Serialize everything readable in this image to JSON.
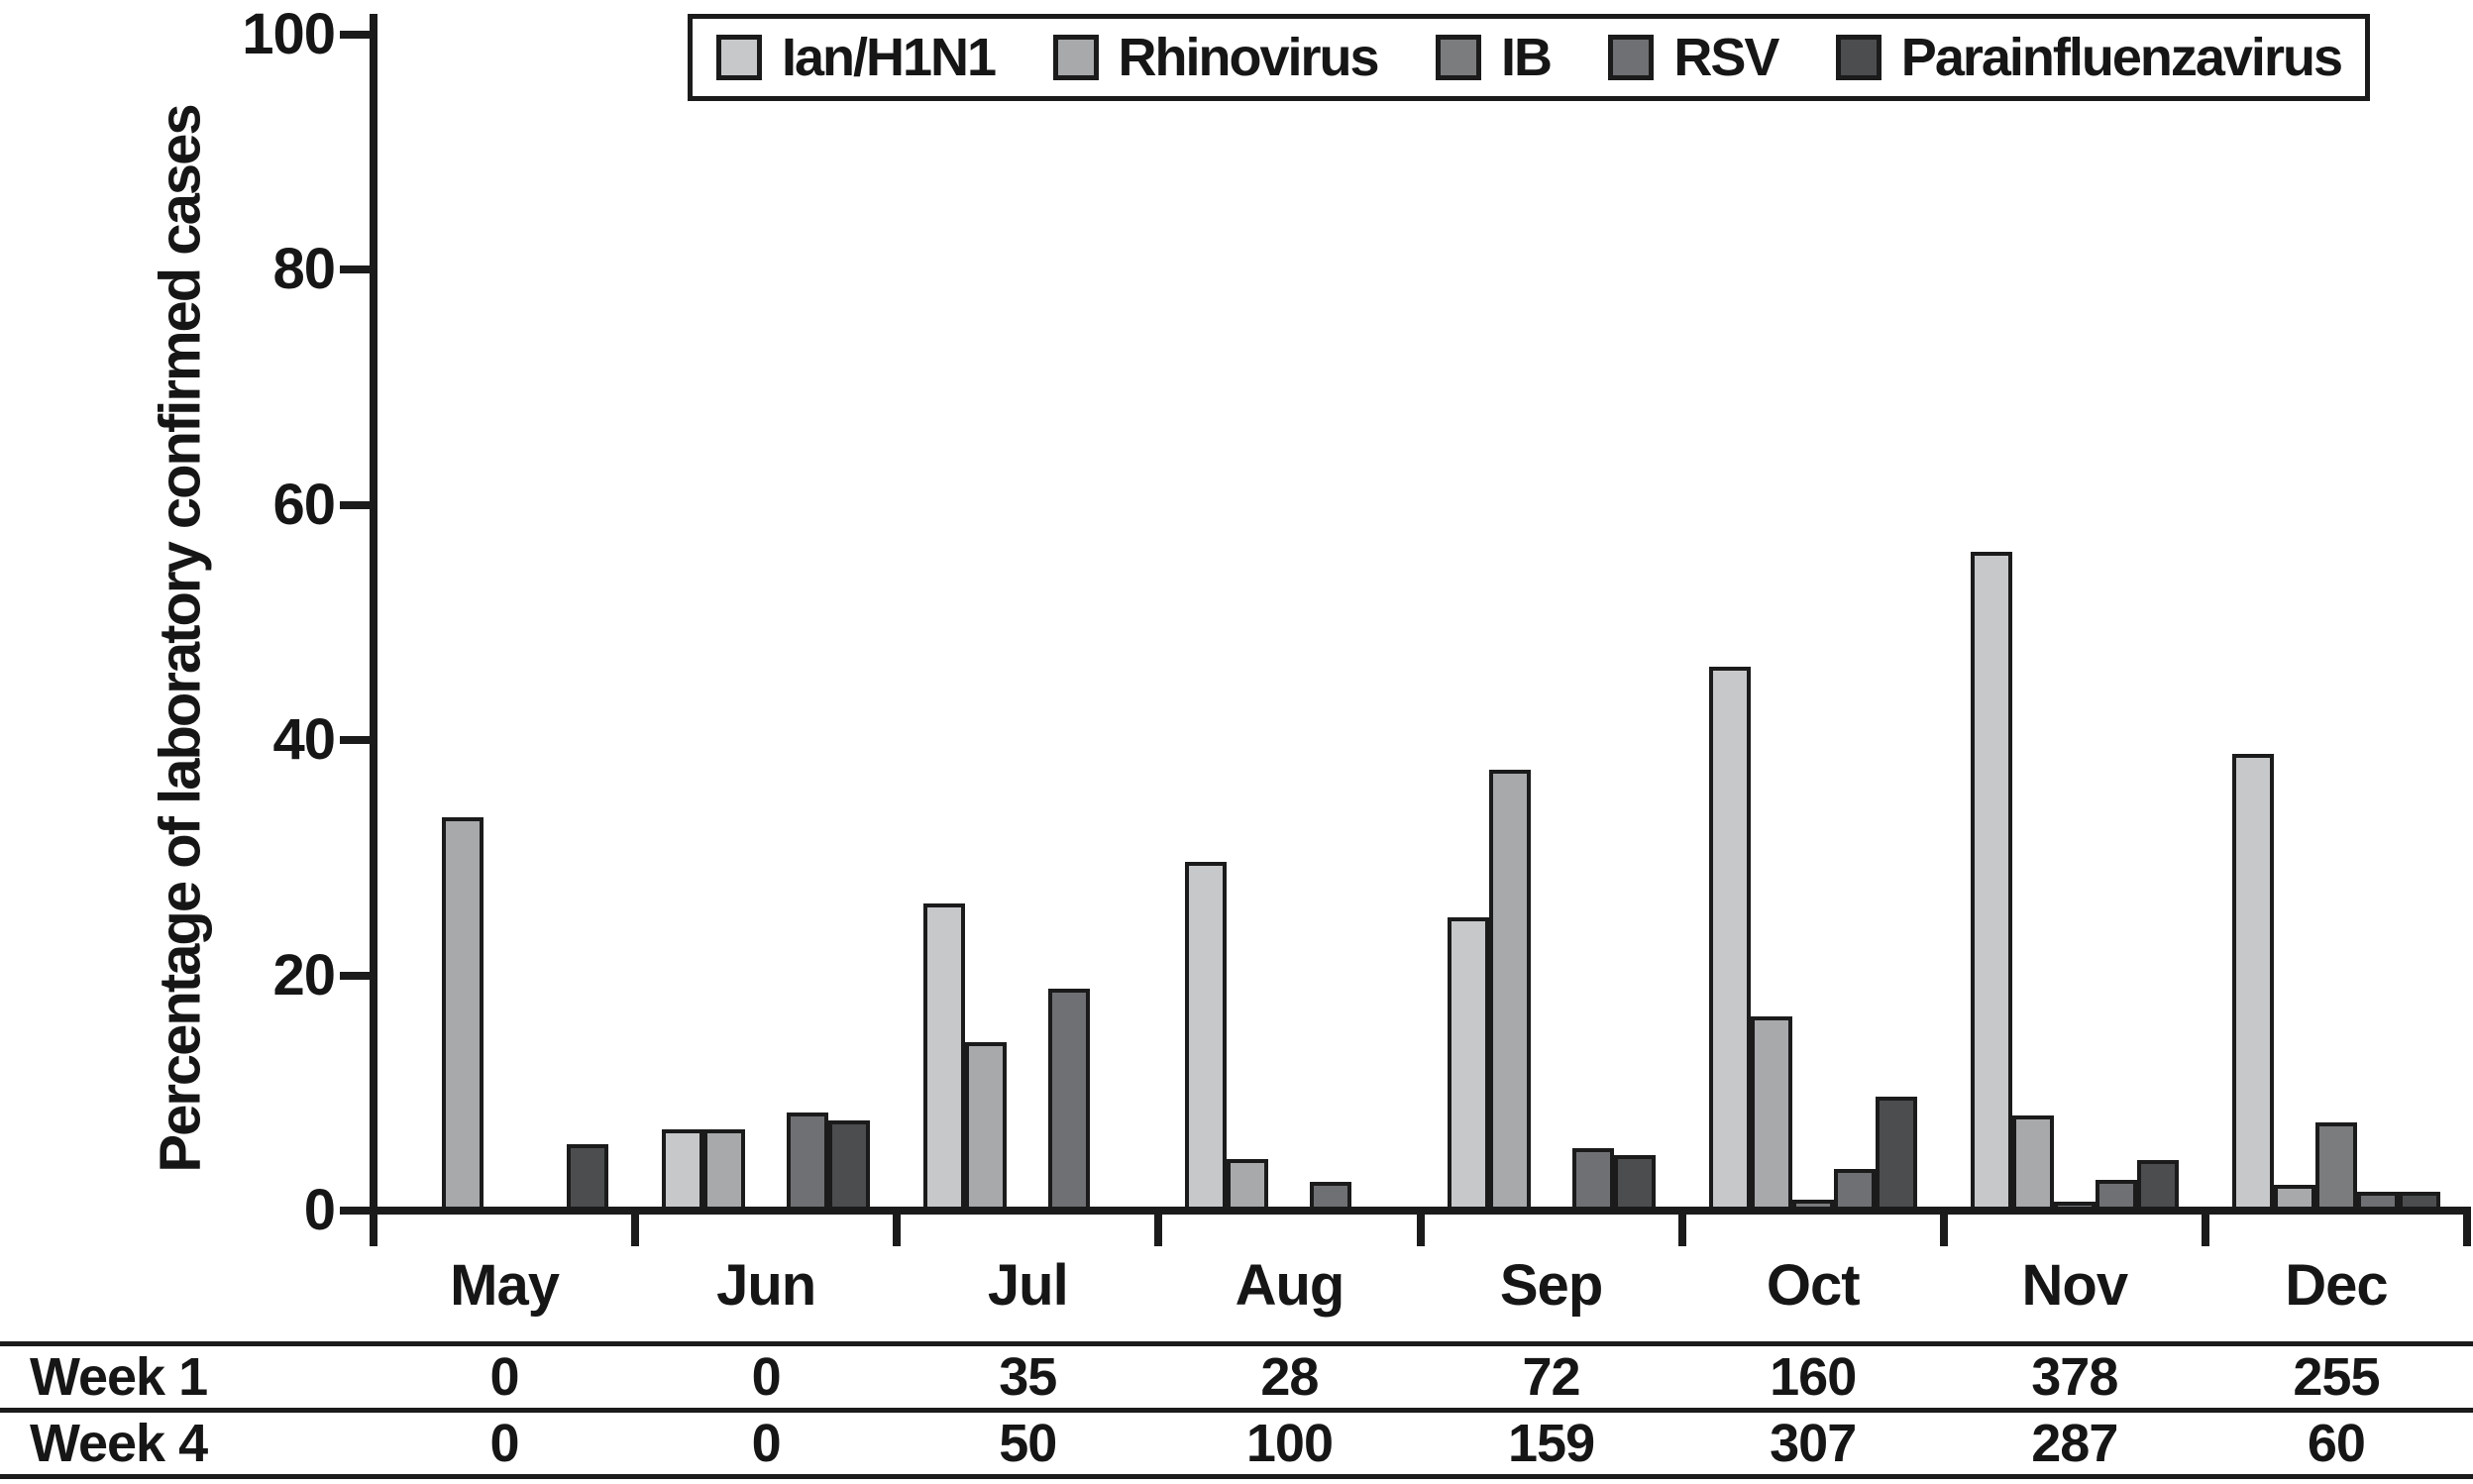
{
  "figure": {
    "background": "#ffffff",
    "ink_color": "#1b1b1b"
  },
  "chart_data": {
    "type": "bar",
    "title": "",
    "xlabel": "",
    "ylabel": "Percentage of laboratory confirmed cases",
    "ylim": [
      0,
      100
    ],
    "y_ticks": [
      0,
      20,
      40,
      60,
      80,
      100
    ],
    "grid": false,
    "legend_position": "top",
    "categories": [
      "May",
      "Jun",
      "Jul",
      "Aug",
      "Sep",
      "Oct",
      "Nov",
      "Dec"
    ],
    "series": [
      {
        "name": "Ian/H1N1",
        "color": "#c6c8ca",
        "values": [
          0,
          6.9,
          26.1,
          29.6,
          24.9,
          46.2,
          56.0,
          38.8
        ]
      },
      {
        "name": "Rhinovirus",
        "color": "#a7a9ab",
        "values": [
          33.4,
          6.9,
          14.3,
          4.4,
          37.5,
          16.5,
          8.1,
          2.2
        ]
      },
      {
        "name": "IB",
        "color": "#7a7c7e",
        "values": [
          0,
          0,
          0,
          0,
          0,
          0.9,
          0.5,
          7.5
        ]
      },
      {
        "name": "RSV",
        "color": "#6e7073",
        "values": [
          0,
          8.3,
          18.9,
          2.4,
          5.3,
          3.5,
          2.6,
          1.6
        ]
      },
      {
        "name": "Parainfluenzavirus",
        "color": "#4b4d4f",
        "values": [
          5.6,
          7.7,
          0,
          0,
          4.7,
          9.7,
          4.3,
          1.6
        ]
      }
    ]
  },
  "table": {
    "rows": [
      {
        "label": "Week 1",
        "values": [
          "0",
          "0",
          "35",
          "28",
          "72",
          "160",
          "378",
          "255"
        ]
      },
      {
        "label": "Week 4",
        "values": [
          "0",
          "0",
          "50",
          "100",
          "159",
          "307",
          "287",
          "60"
        ]
      }
    ]
  }
}
